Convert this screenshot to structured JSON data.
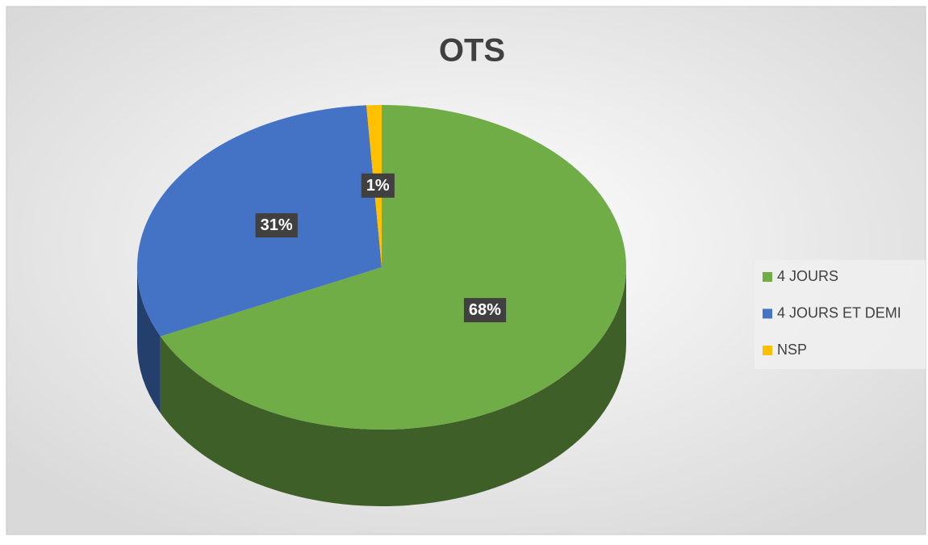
{
  "chart_data": {
    "type": "pie",
    "title": "OTS",
    "categories": [
      "4 JOURS",
      "4 JOURS ET DEMI",
      "NSP"
    ],
    "values": [
      68,
      31,
      1
    ],
    "value_labels": [
      "68%",
      "31%",
      "1%"
    ],
    "colors": [
      "#70ad47",
      "#4472c4",
      "#ffc000"
    ],
    "legend": "right"
  }
}
